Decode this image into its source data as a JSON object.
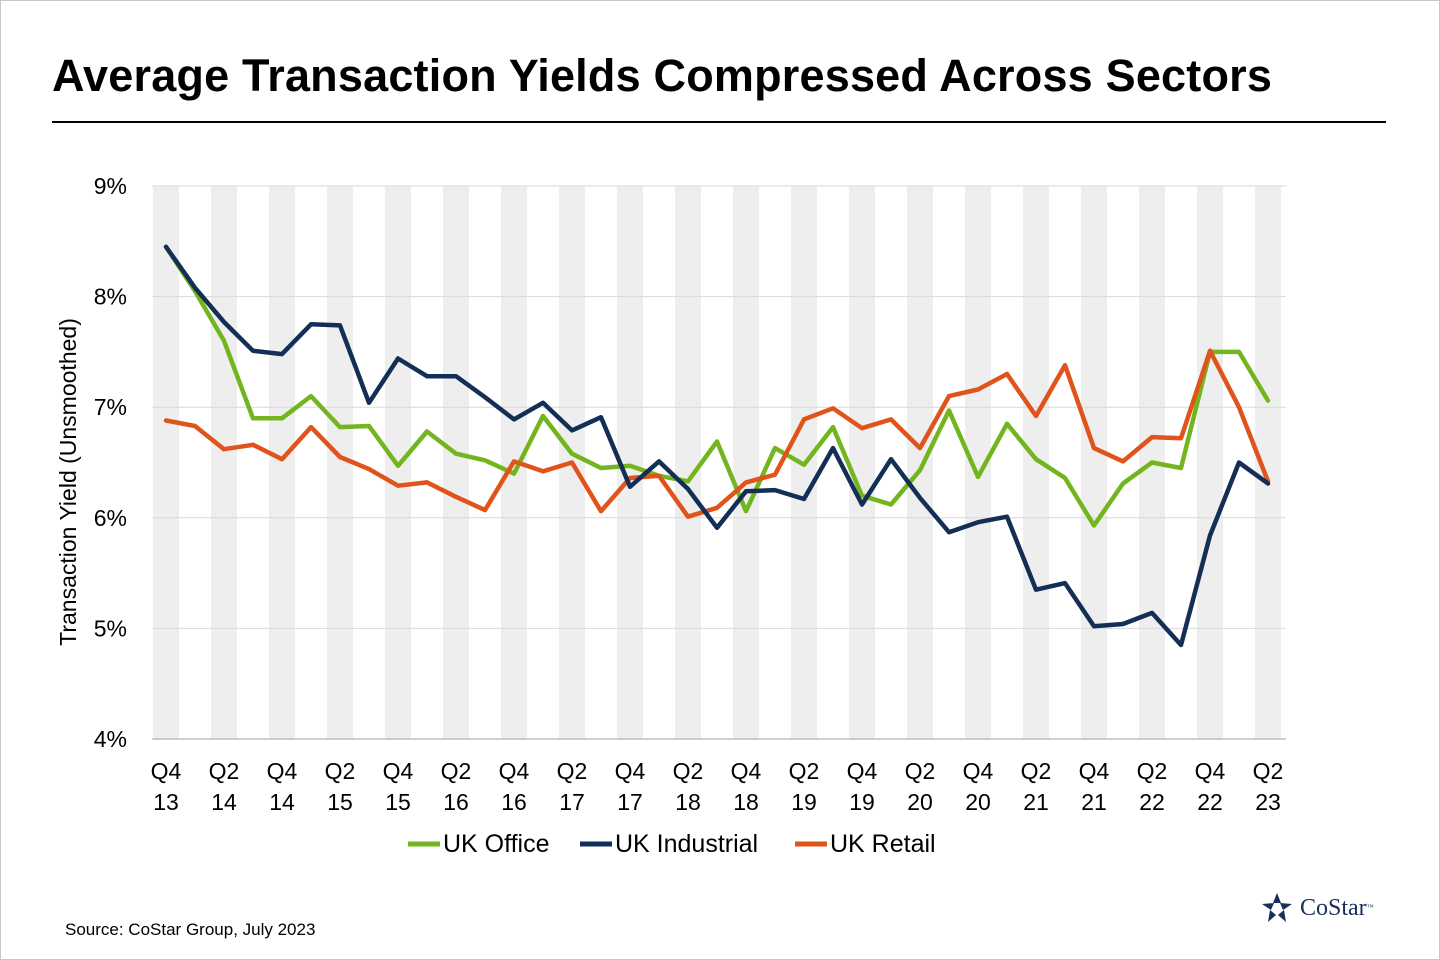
{
  "title": "Average Transaction Yields Compressed Across Sectors",
  "source": "Source: CoStar Group, July 2023",
  "logo": {
    "name": "CoStar",
    "trademark": "™",
    "color": "#1a2f5a"
  },
  "chart_data": {
    "type": "line",
    "ylabel": "Transaction Yield (Unsmoothed)",
    "xlabel": "",
    "ylim": [
      4,
      9
    ],
    "yticks": [
      "4%",
      "5%",
      "6%",
      "7%",
      "8%",
      "9%"
    ],
    "grid": "horizontal",
    "shaded_columns": "alternating quarter bands",
    "legend_position": "bottom",
    "categories": [
      "Q4 13",
      "Q1 14",
      "Q2 14",
      "Q3 14",
      "Q4 14",
      "Q1 15",
      "Q2 15",
      "Q3 15",
      "Q4 15",
      "Q1 16",
      "Q2 16",
      "Q3 16",
      "Q4 16",
      "Q1 17",
      "Q2 17",
      "Q3 17",
      "Q4 17",
      "Q1 18",
      "Q2 18",
      "Q3 18",
      "Q4 18",
      "Q1 19",
      "Q2 19",
      "Q3 19",
      "Q4 19",
      "Q1 20",
      "Q2 20",
      "Q3 20",
      "Q4 20",
      "Q1 21",
      "Q2 21",
      "Q3 21",
      "Q4 21",
      "Q1 22",
      "Q2 22",
      "Q3 22",
      "Q4 22",
      "Q1 23",
      "Q2 23"
    ],
    "tick_labels": [
      [
        "Q4",
        "13"
      ],
      [
        "Q2",
        "14"
      ],
      [
        "Q4",
        "14"
      ],
      [
        "Q2",
        "15"
      ],
      [
        "Q4",
        "15"
      ],
      [
        "Q2",
        "16"
      ],
      [
        "Q4",
        "16"
      ],
      [
        "Q2",
        "17"
      ],
      [
        "Q4",
        "17"
      ],
      [
        "Q2",
        "18"
      ],
      [
        "Q4",
        "18"
      ],
      [
        "Q2",
        "19"
      ],
      [
        "Q4",
        "19"
      ],
      [
        "Q2",
        "20"
      ],
      [
        "Q4",
        "20"
      ],
      [
        "Q2",
        "21"
      ],
      [
        "Q4",
        "21"
      ],
      [
        "Q2",
        "22"
      ],
      [
        "Q4",
        "22"
      ],
      [
        "Q2",
        "23"
      ]
    ],
    "series": [
      {
        "name": "UK Office",
        "color": "#72b51e",
        "values": [
          8.45,
          8.05,
          7.6,
          6.9,
          6.9,
          7.1,
          6.82,
          6.83,
          6.47,
          6.78,
          6.58,
          6.52,
          6.4,
          6.92,
          6.58,
          6.45,
          6.47,
          6.38,
          6.33,
          6.69,
          6.06,
          6.63,
          6.48,
          6.82,
          6.2,
          6.12,
          6.43,
          6.97,
          6.37,
          6.85,
          6.53,
          6.36,
          5.93,
          6.31,
          6.5,
          6.45,
          7.5,
          7.5,
          7.06
        ]
      },
      {
        "name": "UK Industrial",
        "color": "#132f55",
        "values": [
          8.45,
          8.08,
          7.77,
          7.51,
          7.48,
          7.75,
          7.74,
          7.04,
          7.44,
          7.28,
          7.28,
          7.09,
          6.89,
          7.04,
          6.79,
          6.91,
          6.28,
          6.51,
          6.26,
          5.91,
          6.24,
          6.25,
          6.17,
          6.63,
          6.12,
          6.53,
          6.18,
          5.87,
          5.96,
          6.01,
          5.35,
          5.41,
          5.02,
          5.04,
          5.14,
          4.85,
          5.84,
          6.5,
          6.31
        ]
      },
      {
        "name": "UK Retail",
        "color": "#e0531b",
        "values": [
          6.88,
          6.83,
          6.62,
          6.66,
          6.53,
          6.82,
          6.55,
          6.44,
          6.29,
          6.32,
          6.19,
          6.07,
          6.51,
          6.42,
          6.5,
          6.06,
          6.36,
          6.38,
          6.01,
          6.09,
          6.32,
          6.39,
          6.89,
          6.99,
          6.81,
          6.89,
          6.63,
          7.1,
          7.16,
          7.3,
          6.92,
          7.38,
          6.63,
          6.51,
          6.73,
          6.72,
          7.51,
          7.0,
          6.33
        ]
      }
    ]
  }
}
